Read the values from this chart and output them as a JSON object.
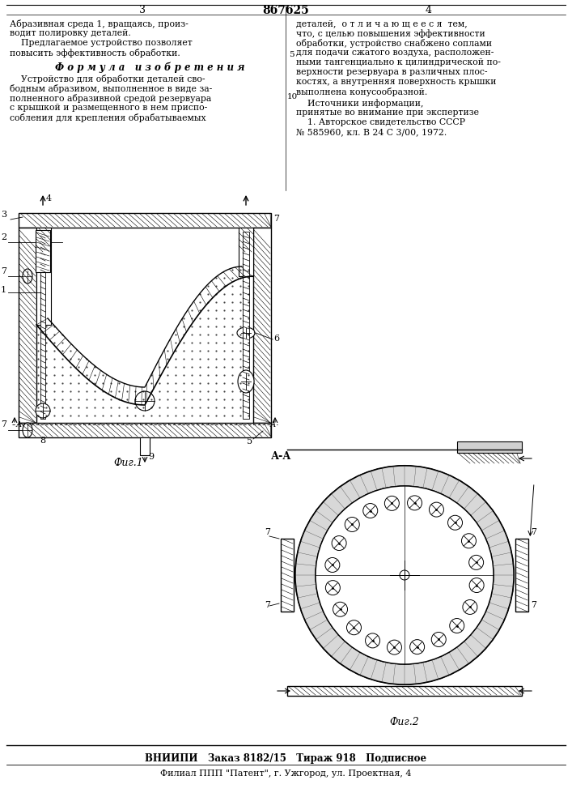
{
  "title": "867625",
  "page_left_num": "3",
  "page_right_num": "4",
  "bg_color": "#ffffff",
  "left_col_text": "Абразивная среда 1, вращаясь, произ-\nводит полировку деталей.\n    Предлагаемое устройство позволяет\nповысить эффективность обработки.",
  "formula_title": "Ф о р м у л а   и з о б р е т е н и я",
  "formula_text": "    Устройство для обработки деталей сво-\nбодным абразивом, выполненное в виде за-\nполненного абразивной средой резервуара\nс крышкой и размещенного в нем приспо-\nсобления для крепления обрабатываемых",
  "right_col_text_1": "деталей,  о т л и ч а ю щ е е с я  тем,\nчто, с целью повышения эффективности\nобработки, устройство снабжено соплами\nдля подачи сжатого воздуха, расположен-\nными тангенциально к цилиндрической по-\nверхности резервуара в различных плос-\nкостях, а внутренняя поверхность крышки\nвыполнена конусообразной.",
  "right_col_text_2": "    Источники информации,\nпринятые во внимание при экспертизе\n    1. Авторское свидетельство СССР\n№ 585960, кл. В 24 С 3/00, 1972.",
  "fig1_caption": "Фиг.1",
  "fig2_caption": "Фиг.2",
  "fig_aa_label": "А-А",
  "bottom_text1": "ВНИИПИ   Заказ 8182/15   Тираж 918   Подписное",
  "bottom_text2": "Филиал ППП \"Патент\", г. Ужгород, ул. Проектная, 4",
  "line_num_5": "5",
  "line_num_10": "10"
}
